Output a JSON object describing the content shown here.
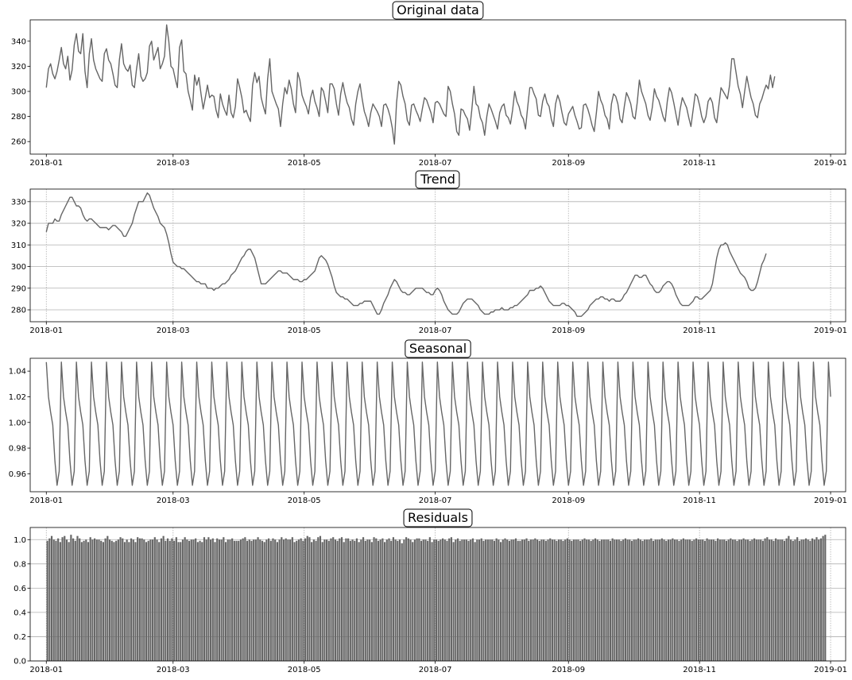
{
  "chart_data": [
    {
      "type": "line",
      "title": "Original data",
      "ylim": [
        250,
        357
      ],
      "yticks": [
        260,
        280,
        300,
        320,
        340
      ],
      "grid": false,
      "series": [
        {
          "values": [
            303,
            318,
            322,
            314,
            310,
            316,
            325,
            335,
            322,
            318,
            328,
            309,
            317,
            337,
            346,
            332,
            330,
            346,
            316,
            303,
            330,
            342,
            325,
            318,
            314,
            310,
            308,
            330,
            334,
            325,
            322,
            314,
            305,
            303,
            325,
            338,
            322,
            318,
            316,
            321,
            305,
            303,
            318,
            330,
            312,
            308,
            310,
            315,
            336,
            340,
            325,
            330,
            335,
            318,
            322,
            328,
            353,
            340,
            320,
            318,
            310,
            303,
            335,
            341,
            316,
            314,
            300,
            293,
            285,
            313,
            305,
            311,
            298,
            286,
            295,
            305,
            295,
            297,
            296,
            285,
            279,
            298,
            290,
            285,
            281,
            297,
            283,
            279,
            288,
            310,
            303,
            295,
            283,
            285,
            280,
            276,
            305,
            315,
            307,
            312,
            295,
            288,
            282,
            310,
            326,
            300,
            295,
            290,
            286,
            272,
            290,
            303,
            298,
            309,
            302,
            290,
            283,
            315,
            309,
            297,
            292,
            288,
            282,
            295,
            301,
            292,
            287,
            280,
            303,
            300,
            292,
            283,
            306,
            306,
            302,
            290,
            281,
            298,
            307,
            298,
            291,
            287,
            278,
            273,
            290,
            300,
            306,
            294,
            284,
            279,
            272,
            283,
            290,
            287,
            284,
            280,
            272,
            289,
            290,
            286,
            280,
            271,
            258,
            291,
            308,
            305,
            296,
            290,
            277,
            273,
            289,
            290,
            285,
            281,
            276,
            286,
            295,
            293,
            288,
            283,
            275,
            291,
            292,
            290,
            286,
            282,
            280,
            304,
            300,
            290,
            282,
            268,
            265,
            286,
            285,
            281,
            278,
            269,
            285,
            304,
            290,
            288,
            279,
            275,
            265,
            280,
            290,
            286,
            281,
            276,
            270,
            283,
            288,
            290,
            281,
            279,
            274,
            285,
            300,
            292,
            288,
            281,
            278,
            270,
            287,
            303,
            303,
            298,
            294,
            281,
            280,
            292,
            298,
            291,
            288,
            278,
            272,
            290,
            297,
            292,
            283,
            275,
            273,
            282,
            285,
            288,
            281,
            276,
            270,
            271,
            289,
            290,
            286,
            280,
            273,
            268,
            283,
            300,
            293,
            289,
            281,
            278,
            270,
            290,
            298,
            296,
            290,
            278,
            275,
            288,
            299,
            295,
            290,
            280,
            278,
            291,
            309,
            300,
            295,
            290,
            281,
            277,
            287,
            302,
            296,
            293,
            287,
            280,
            276,
            292,
            303,
            299,
            291,
            282,
            273,
            286,
            295,
            291,
            287,
            279,
            272,
            285,
            298,
            296,
            289,
            280,
            275,
            280,
            292,
            295,
            291,
            279,
            275,
            289,
            303,
            300,
            297,
            294,
            305,
            326,
            326,
            315,
            304,
            298,
            287,
            300,
            312,
            303,
            295,
            290,
            281,
            279,
            290,
            294,
            300,
            305,
            302,
            313,
            303,
            312
          ]
        }
      ]
    },
    {
      "type": "line",
      "title": "Trend",
      "ylim": [
        274.5,
        335.8
      ],
      "yticks": [
        280,
        290,
        300,
        310,
        320,
        330
      ],
      "grid": true,
      "series": [
        {
          "values": [
            316,
            320,
            320,
            320,
            322,
            321,
            321,
            324,
            326,
            328,
            330,
            332,
            332,
            330,
            328,
            328,
            327,
            324,
            322,
            321,
            322,
            322,
            321,
            320,
            319,
            318,
            318,
            318,
            318,
            317,
            318,
            319,
            319,
            318,
            317,
            316,
            314,
            314,
            316,
            318,
            320,
            324,
            327,
            330,
            330,
            330,
            332,
            334,
            333,
            330,
            327,
            325,
            323,
            320,
            319,
            318,
            315,
            311,
            306,
            302,
            301,
            300,
            300,
            299,
            299,
            298,
            297,
            296,
            295,
            294,
            293,
            293,
            292,
            292,
            292,
            290,
            290,
            290,
            289,
            290,
            290,
            291,
            292,
            292,
            293,
            294,
            296,
            297,
            298,
            300,
            302,
            304,
            305,
            307,
            308,
            308,
            306,
            304,
            300,
            296,
            292,
            292,
            292,
            293,
            294,
            295,
            296,
            297,
            298,
            298,
            297,
            297,
            297,
            296,
            295,
            294,
            294,
            294,
            293,
            293,
            294,
            294,
            295,
            296,
            297,
            298,
            301,
            304,
            305,
            304,
            303,
            301,
            298,
            295,
            291,
            288,
            287,
            286,
            286,
            285,
            285,
            284,
            283,
            282,
            282,
            282,
            283,
            283,
            284,
            284,
            284,
            284,
            282,
            280,
            278,
            278,
            280,
            283,
            285,
            287,
            290,
            292,
            294,
            293,
            291,
            289,
            288,
            288,
            287,
            287,
            288,
            289,
            290,
            290,
            290,
            290,
            289,
            288,
            288,
            287,
            287,
            289,
            290,
            289,
            287,
            284,
            282,
            280,
            279,
            278,
            278,
            278,
            279,
            281,
            283,
            284,
            285,
            285,
            285,
            284,
            283,
            282,
            280,
            279,
            278,
            278,
            278,
            279,
            279,
            280,
            280,
            280,
            281,
            280,
            280,
            280,
            281,
            281,
            282,
            282,
            283,
            284,
            285,
            286,
            287,
            289,
            289,
            289,
            290,
            290,
            291,
            290,
            288,
            286,
            284,
            283,
            282,
            282,
            282,
            282,
            283,
            283,
            282,
            282,
            281,
            280,
            279,
            277,
            277,
            277,
            278,
            279,
            280,
            282,
            283,
            284,
            285,
            285,
            286,
            286,
            285,
            285,
            284,
            285,
            285,
            284,
            284,
            284,
            285,
            287,
            288,
            290,
            292,
            294,
            296,
            296,
            295,
            295,
            296,
            296,
            294,
            292,
            291,
            289,
            288,
            288,
            289,
            291,
            292,
            293,
            293,
            292,
            290,
            287,
            285,
            283,
            282,
            282,
            282,
            282,
            283,
            284,
            286,
            286,
            285,
            285,
            286,
            287,
            288,
            289,
            292,
            298,
            304,
            308,
            310,
            310,
            311,
            310,
            307,
            305,
            303,
            301,
            299,
            297,
            296,
            295,
            293,
            290,
            289,
            289,
            290,
            293,
            297,
            301,
            303,
            306
          ]
        }
      ]
    },
    {
      "type": "line",
      "title": "Seasonal",
      "ylim": [
        0.946,
        1.05
      ],
      "yticks": [
        0.96,
        0.98,
        1.0,
        1.02,
        1.04
      ],
      "grid": false,
      "period": 7,
      "pattern": [
        1.047,
        1.02,
        1.008,
        0.998,
        0.97,
        0.951,
        0.962
      ],
      "length": 366
    },
    {
      "type": "bar",
      "title": "Residuals",
      "ylim": [
        0,
        1.1
      ],
      "yticks": [
        0.0,
        0.2,
        0.4,
        0.6,
        0.8,
        1.0
      ],
      "grid": true,
      "series": [
        {
          "values": [
            0.99,
            1.01,
            1.03,
            1.0,
            0.99,
            1.01,
            0.98,
            1.02,
            1.03,
            1.0,
            0.98,
            1.04,
            1.01,
            0.99,
            1.03,
            1.01,
            0.98,
            0.99,
            1.0,
            0.98,
            1.02,
            1.0,
            1.01,
            1.0,
            1.0,
            0.99,
            0.98,
            1.01,
            1.03,
            1.0,
            0.99,
            0.98,
            0.99,
            1.0,
            1.02,
            1.01,
            0.98,
            1.0,
            0.98,
            1.01,
            1.0,
            0.98,
            1.02,
            1.01,
            1.01,
            1.0,
            0.98,
            0.99,
            1.0,
            1.0,
            1.02,
            1.0,
            0.98,
            1.01,
            1.03,
            0.99,
            1.01,
            0.99,
            1.01,
            0.99,
            1.02,
            0.98,
            0.98,
            1.0,
            1.02,
            1.0,
            0.99,
            1.0,
            1.0,
            1.01,
            0.98,
            0.99,
            0.98,
            1.02,
            1.0,
            1.02,
            1.0,
            1.01,
            0.98,
            1.01,
            1.0,
            1.0,
            1.02,
            0.98,
            1.0,
            1.0,
            1.01,
            0.99,
            0.99,
            0.99,
            1.0,
            1.01,
            1.02,
            0.99,
            1.0,
            0.99,
            1.0,
            1.0,
            1.02,
            1.0,
            0.99,
            0.98,
            1.0,
            1.01,
            0.99,
            1.01,
            1.0,
            0.98,
            1.0,
            1.02,
            1.0,
            1.01,
            1.0,
            1.0,
            1.02,
            0.98,
            0.99,
            1.0,
            1.01,
            0.99,
            1.01,
            1.03,
            1.02,
            0.98,
            1.0,
            0.99,
            1.02,
            1.03,
            0.98,
            1.0,
            1.0,
            0.99,
            1.01,
            1.02,
            1.0,
            0.99,
            1.01,
            1.02,
            0.98,
            1.01,
            1.01,
            0.99,
            1.0,
            0.99,
            1.01,
            0.98,
            1.0,
            1.02,
            0.99,
            1.0,
            1.0,
            0.98,
            1.02,
            1.01,
            0.99,
            1.0,
            1.01,
            0.98,
            1.0,
            1.01,
            0.99,
            1.02,
            1.0,
            0.99,
            1.0,
            0.97,
            1.0,
            1.02,
            1.01,
            1.0,
            0.98,
            1.0,
            1.01,
            1.01,
            0.99,
            1.0,
            1.0,
            0.99,
            1.02,
            0.98,
            1.0,
            1.0,
            0.99,
            1.0,
            1.01,
            1.0,
            0.99,
            1.01,
            1.02,
            0.98,
            1.0,
            1.01,
            0.99,
            1.0,
            1.0,
            1.0,
            0.99,
            1.0,
            1.01,
            0.98,
            1.0,
            1.0,
            1.01,
            0.99,
            1.0,
            1.0,
            1.0,
            1.0,
            0.99,
            1.01,
            1.0,
            0.98,
            1.0,
            1.01,
            1.0,
            0.99,
            1.0,
            1.0,
            1.01,
            0.99,
            0.99,
            1.0,
            1.0,
            1.01,
            0.99,
            1.0,
            1.0,
            1.01,
            1.0,
            0.99,
            1.0,
            1.0,
            0.99,
            1.0,
            1.01,
            1.0,
            1.0,
            0.99,
            1.0,
            1.0,
            0.99,
            1.0,
            1.01,
            1.0,
            0.99,
            1.0,
            1.0,
            1.0,
            0.99,
            1.0,
            1.01,
            1.0,
            1.0,
            0.99,
            1.0,
            1.01,
            1.0,
            0.99,
            1.0,
            1.0,
            1.0,
            1.0,
            0.99,
            1.01,
            1.0,
            1.0,
            1.0,
            0.99,
            1.0,
            1.01,
            1.0,
            1.0,
            0.99,
            1.0,
            1.0,
            1.01,
            1.0,
            0.99,
            1.0,
            1.0,
            1.0,
            1.01,
            0.99,
            1.0,
            1.0,
            1.0,
            1.01,
            1.0,
            0.99,
            1.0,
            1.0,
            1.01,
            1.0,
            1.0,
            0.99,
            1.0,
            1.01,
            1.0,
            1.0,
            1.0,
            0.99,
            1.0,
            1.01,
            1.0,
            1.0,
            1.0,
            0.99,
            1.01,
            1.0,
            1.0,
            1.0,
            0.99,
            1.01,
            1.0,
            1.0,
            1.0,
            0.99,
            1.0,
            1.01,
            1.0,
            1.0,
            0.99,
            1.0,
            1.0,
            1.01,
            1.0,
            1.0,
            0.99,
            1.0,
            1.01,
            1.0,
            1.0,
            1.0,
            0.99,
            1.01,
            1.02,
            1.0,
            1.0,
            0.99,
            1.01,
            1.0,
            1.0,
            1.0,
            0.99,
            1.01,
            1.03,
            1.0,
            0.99,
            1.0,
            1.02,
            0.99,
            1.0,
            1.0,
            1.01,
            1.0,
            0.99,
            1.01,
            1.0,
            1.02,
            1.0,
            1.01,
            1.03,
            1.04
          ]
        }
      ]
    }
  ],
  "x_axis": {
    "start_date": "2018-01-01",
    "ticks": [
      "2018-01",
      "2018-03",
      "2018-05",
      "2018-07",
      "2018-09",
      "2018-11",
      "2019-01"
    ]
  },
  "colors": {
    "line": "#666666",
    "bar": "#666666",
    "grid": "#b0b0b0",
    "axis": "#000000"
  }
}
